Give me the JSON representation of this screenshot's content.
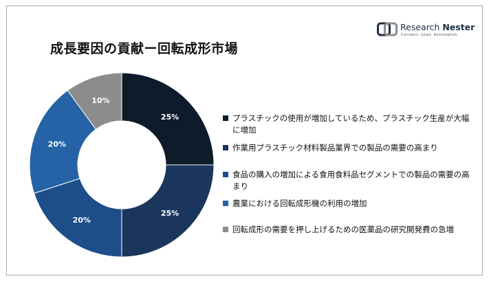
{
  "header": {
    "title": "成長要因の貢献ー回転成形市場",
    "logo": {
      "name_part1": "Research ",
      "name_part2": "Nester",
      "tagline": "Connect. Lead. Accomplish"
    }
  },
  "chart_data": {
    "type": "pie",
    "donut": true,
    "title": "成長要因の貢献ー回転成形市場",
    "slices": [
      {
        "label": "プラスチックの使用が増加しているため、プラスチック生産が大幅に増加",
        "value": 25,
        "value_label": "25%",
        "color": "#0d1b2a"
      },
      {
        "label": "作業用プラスチック材料製品業界での製品の需要の高まり",
        "value": 25,
        "value_label": "25%",
        "color": "#1b365d"
      },
      {
        "label": "食品の購入の増加による食用食料品セグメントでの製品の需要の高まり",
        "value": 20,
        "value_label": "20%",
        "color": "#1d4e89"
      },
      {
        "label": "農業における回転成形機の利用の増加",
        "value": 20,
        "value_label": "20%",
        "color": "#2563a6"
      },
      {
        "label": "回転成形の需要を押し上げるための医薬品の研究開発費の急増",
        "value": 10,
        "value_label": "10%",
        "color": "#8c8c8c"
      }
    ],
    "legend_position": "right"
  }
}
